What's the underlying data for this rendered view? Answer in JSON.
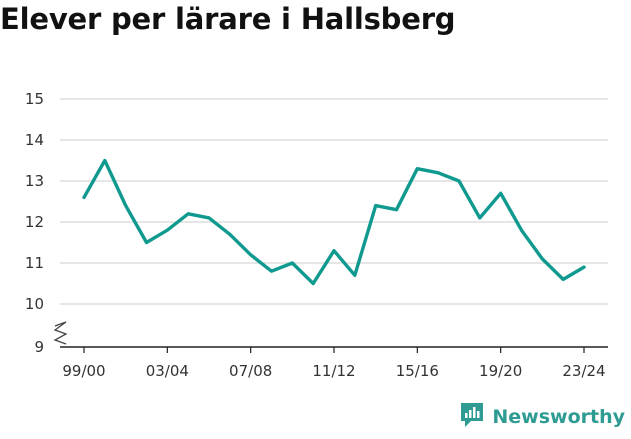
{
  "title": "Elever per lärare i Hallsberg",
  "brand": {
    "name": "Newsworthy",
    "color": "#2e9c92"
  },
  "colors": {
    "line": "#109a8f",
    "grid": "#d6d6d6",
    "axis": "#222222"
  },
  "chart_data": {
    "type": "line",
    "title": "Elever per lärare i Hallsberg",
    "xlabel": "",
    "ylabel": "",
    "x": [
      "99/00",
      "00/01",
      "01/02",
      "02/03",
      "03/04",
      "04/05",
      "05/06",
      "06/07",
      "07/08",
      "08/09",
      "09/10",
      "10/11",
      "11/12",
      "12/13",
      "13/14",
      "14/15",
      "15/16",
      "16/17",
      "17/18",
      "18/19",
      "19/20",
      "20/21",
      "21/22",
      "22/23",
      "23/24"
    ],
    "xtick_labels": [
      "99/00",
      "03/04",
      "07/08",
      "11/12",
      "15/16",
      "19/20",
      "23/24"
    ],
    "yticks": [
      9,
      10,
      11,
      12,
      13,
      14,
      15
    ],
    "ylim": [
      9,
      15
    ],
    "axis_break": true,
    "grid": true,
    "series": [
      {
        "values": [
          12.6,
          13.5,
          12.4,
          11.5,
          11.8,
          12.2,
          12.1,
          11.7,
          11.2,
          10.8,
          11.0,
          10.5,
          11.3,
          10.7,
          12.4,
          12.3,
          13.3,
          13.2,
          13.0,
          12.1,
          12.7,
          11.8,
          11.1,
          10.6,
          10.9
        ]
      }
    ]
  }
}
